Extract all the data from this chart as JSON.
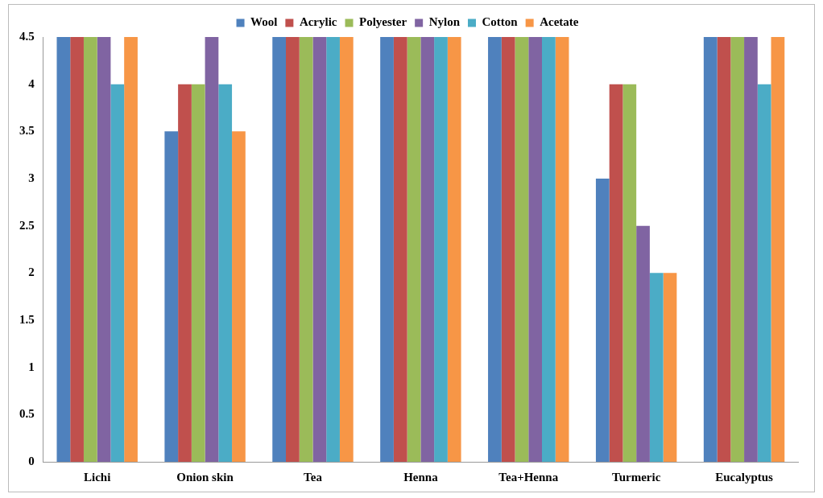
{
  "chart_data": {
    "type": "bar",
    "categories": [
      "Lichi",
      "Onion skin",
      "Tea",
      "Henna",
      "Tea+Henna",
      "Turmeric",
      "Eucalyptus"
    ],
    "series": [
      {
        "name": "Wool",
        "color": "#4f81bd",
        "values": [
          4.5,
          3.5,
          4.5,
          4.5,
          4.5,
          3,
          4.5
        ]
      },
      {
        "name": "Acrylic",
        "color": "#c0504d",
        "values": [
          4.5,
          4,
          4.5,
          4.5,
          4.5,
          4,
          4.5
        ]
      },
      {
        "name": "Polyester",
        "color": "#9bbb59",
        "values": [
          4.5,
          4,
          4.5,
          4.5,
          4.5,
          4,
          4.5
        ]
      },
      {
        "name": "Nylon",
        "color": "#8064a2",
        "values": [
          4.5,
          4.5,
          4.5,
          4.5,
          4.5,
          2.5,
          4.5
        ]
      },
      {
        "name": "Cotton",
        "color": "#4bacc6",
        "values": [
          4,
          4,
          4.5,
          4.5,
          4.5,
          2,
          4
        ]
      },
      {
        "name": "Acetate",
        "color": "#f79646",
        "values": [
          4.5,
          3.5,
          4.5,
          4.5,
          4.5,
          2,
          4.5
        ]
      }
    ],
    "ylim": [
      0,
      4.5
    ],
    "yticks": [
      0,
      0.5,
      1,
      1.5,
      2,
      2.5,
      3,
      3.5,
      4,
      4.5
    ],
    "grid": false,
    "legend": "top"
  }
}
